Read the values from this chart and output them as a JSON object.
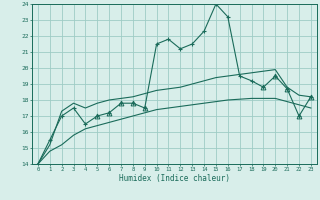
{
  "x": [
    0,
    1,
    2,
    3,
    4,
    5,
    6,
    7,
    8,
    9,
    10,
    11,
    12,
    13,
    14,
    15,
    16,
    17,
    18,
    19,
    20,
    21,
    22,
    23
  ],
  "line_main": [
    14.0,
    15.5,
    17.0,
    17.5,
    16.5,
    17.0,
    17.2,
    17.8,
    17.8,
    17.5,
    21.5,
    21.8,
    21.2,
    21.5,
    22.3,
    24.0,
    23.2,
    19.5,
    19.2,
    18.8,
    19.5,
    18.7,
    17.0,
    18.2
  ],
  "line_upper": [
    14.0,
    15.2,
    17.3,
    17.8,
    17.5,
    17.8,
    18.0,
    18.1,
    18.2,
    18.4,
    18.6,
    18.7,
    18.8,
    19.0,
    19.2,
    19.4,
    19.5,
    19.6,
    19.7,
    19.8,
    19.9,
    18.8,
    18.3,
    18.2
  ],
  "line_lower": [
    14.0,
    14.8,
    15.2,
    15.8,
    16.2,
    16.4,
    16.6,
    16.8,
    17.0,
    17.2,
    17.4,
    17.5,
    17.6,
    17.7,
    17.8,
    17.9,
    18.0,
    18.05,
    18.1,
    18.1,
    18.1,
    17.9,
    17.7,
    17.5
  ],
  "markers_plus_x": [
    0,
    1,
    2,
    3,
    4,
    5,
    10,
    11,
    12,
    13,
    14,
    15,
    16,
    17,
    18,
    19
  ],
  "markers_plus_y": [
    14.0,
    15.5,
    17.0,
    17.5,
    16.5,
    17.0,
    21.5,
    21.8,
    21.2,
    21.5,
    22.3,
    24.0,
    23.2,
    19.5,
    19.2,
    18.8
  ],
  "markers_tri_x": [
    5,
    6,
    7,
    8,
    9,
    19,
    20,
    21,
    22,
    23
  ],
  "markers_tri_y": [
    17.0,
    17.2,
    17.8,
    17.8,
    17.5,
    18.8,
    19.5,
    18.7,
    17.0,
    18.2
  ],
  "bg_color": "#d8eeea",
  "grid_color": "#9eccc5",
  "line_color": "#1a6b5a",
  "ylim": [
    14,
    24
  ],
  "xlim": [
    -0.5,
    23.5
  ],
  "xlabel": "Humidex (Indice chaleur)",
  "yticks": [
    14,
    15,
    16,
    17,
    18,
    19,
    20,
    21,
    22,
    23,
    24
  ],
  "xticks": [
    0,
    1,
    2,
    3,
    4,
    5,
    6,
    7,
    8,
    9,
    10,
    11,
    12,
    13,
    14,
    15,
    16,
    17,
    18,
    19,
    20,
    21,
    22,
    23
  ]
}
